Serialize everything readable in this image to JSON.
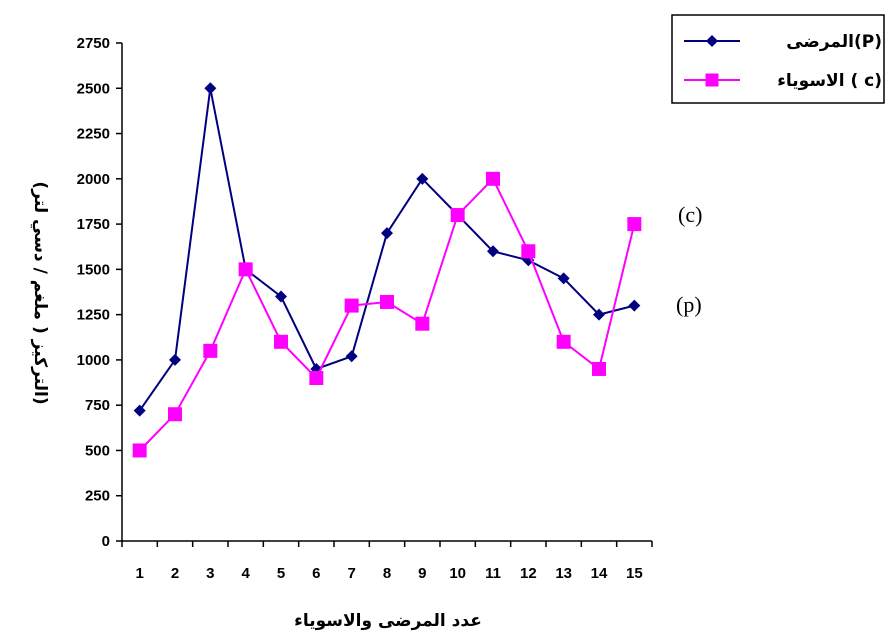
{
  "chart_data": {
    "type": "line",
    "x": [
      1,
      2,
      3,
      4,
      5,
      6,
      7,
      8,
      9,
      10,
      11,
      12,
      13,
      14,
      15
    ],
    "xlabel": "عدد المرضى والاسوياء",
    "ylabel": "(التركيز ( ملغم / دسي لتر)",
    "ylim": [
      0,
      2750
    ],
    "yticks": [
      0,
      250,
      500,
      750,
      1000,
      1250,
      1500,
      1750,
      2000,
      2250,
      2500,
      2750
    ],
    "legend_position": "top-right",
    "series": [
      {
        "name": "المرضى(P)",
        "marker": "diamond",
        "color": "#000080",
        "values": [
          720,
          1000,
          2500,
          1500,
          1350,
          950,
          1020,
          1700,
          2000,
          1800,
          1600,
          1550,
          1450,
          1250,
          1300
        ]
      },
      {
        "name": "الاسوياء ( c)",
        "marker": "square",
        "color": "#ff00ff",
        "values": [
          500,
          700,
          1050,
          1500,
          1100,
          900,
          1300,
          1320,
          1200,
          1800,
          2000,
          1600,
          1100,
          950,
          1750
        ]
      }
    ],
    "annotations": [
      {
        "text": "(c)",
        "series": 1
      },
      {
        "text": "(p)",
        "series": 0
      }
    ]
  }
}
